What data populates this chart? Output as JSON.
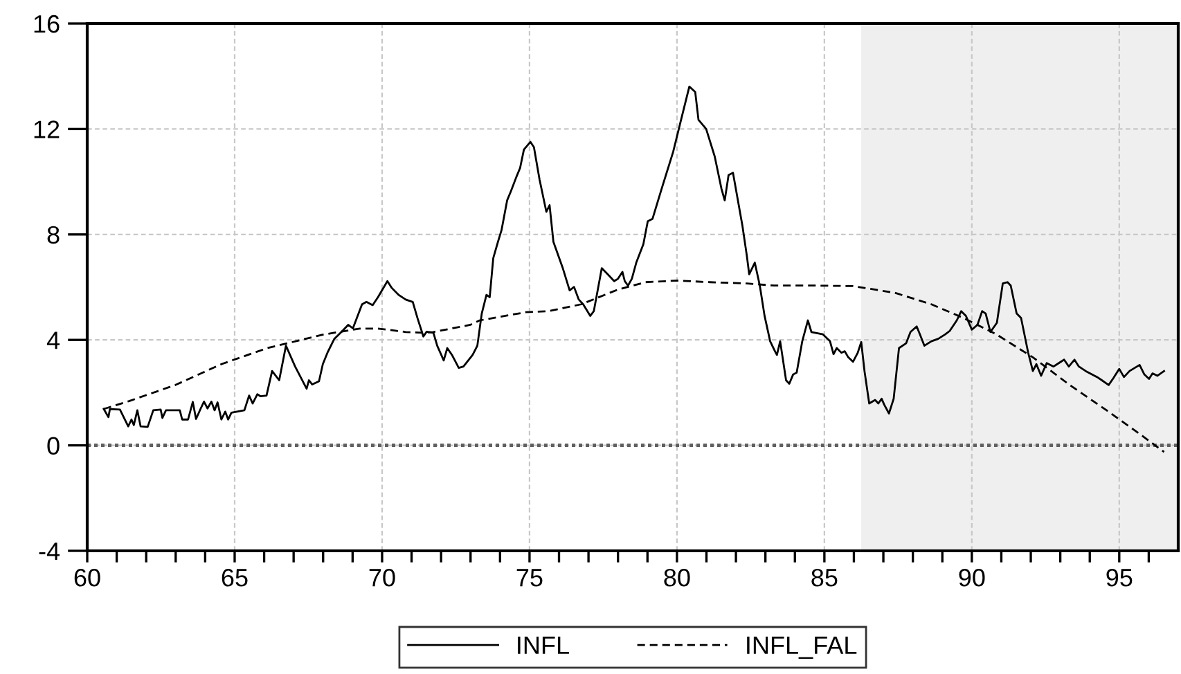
{
  "chart_data": {
    "type": "line",
    "xlim": [
      60,
      97
    ],
    "ylim": [
      -4,
      16
    ],
    "xticks": [
      60,
      {
        "value": 61,
        "label": null
      },
      {
        "value": 62,
        "label": null
      },
      {
        "value": 63,
        "label": null
      },
      {
        "value": 64,
        "label": null
      },
      65,
      {
        "value": 66,
        "label": null
      },
      {
        "value": 67,
        "label": null
      },
      {
        "value": 68,
        "label": null
      },
      {
        "value": 69,
        "label": null
      },
      70,
      {
        "value": 71,
        "label": null
      },
      {
        "value": 72,
        "label": null
      },
      {
        "value": 73,
        "label": null
      },
      {
        "value": 74,
        "label": null
      },
      75,
      {
        "value": 76,
        "label": null
      },
      {
        "value": 77,
        "label": null
      },
      {
        "value": 78,
        "label": null
      },
      {
        "value": 79,
        "label": null
      },
      80,
      {
        "value": 81,
        "label": null
      },
      {
        "value": 82,
        "label": null
      },
      {
        "value": 83,
        "label": null
      },
      {
        "value": 84,
        "label": null
      },
      85,
      {
        "value": 86,
        "label": null
      },
      {
        "value": 87,
        "label": null
      },
      {
        "value": 88,
        "label": null
      },
      {
        "value": 89,
        "label": null
      },
      90,
      {
        "value": 91,
        "label": null
      },
      {
        "value": 92,
        "label": null
      },
      {
        "value": 93,
        "label": null
      },
      {
        "value": 94,
        "label": null
      },
      95,
      {
        "value": 96,
        "label": null
      }
    ],
    "yticks": [
      -4,
      0,
      4,
      8,
      12,
      16
    ],
    "grid": true,
    "legend": "bottom",
    "ref_lines": [
      {
        "axis": "y",
        "value": 0,
        "color": "#606060",
        "line_style": "dotted"
      }
    ],
    "bands": [
      {
        "axis": "x",
        "from": 86.25,
        "to": 97,
        "color": "#efefef"
      }
    ],
    "series": [
      {
        "name": "INFL",
        "color": "#000000",
        "line_style": "solid",
        "x": [
          60.56,
          60.72,
          60.77,
          61.11,
          61.39,
          61.5,
          61.58,
          61.7,
          61.81,
          62.05,
          62.24,
          62.49,
          62.55,
          62.67,
          63.14,
          63.22,
          63.42,
          63.58,
          63.69,
          63.85,
          63.96,
          64.08,
          64.21,
          64.32,
          64.42,
          64.55,
          64.68,
          64.78,
          64.89,
          65.33,
          65.49,
          65.61,
          65.77,
          65.88,
          66.08,
          66.27,
          66.51,
          66.74,
          67.05,
          67.44,
          67.52,
          67.63,
          67.86,
          67.99,
          68.15,
          68.38,
          68.62,
          68.85,
          69.01,
          69.32,
          69.47,
          69.68,
          69.86,
          70.18,
          70.33,
          70.57,
          70.8,
          71.04,
          71.2,
          71.4,
          71.51,
          71.74,
          71.87,
          72.09,
          72.21,
          72.37,
          72.6,
          72.76,
          73.07,
          73.23,
          73.38,
          73.54,
          73.65,
          73.77,
          73.93,
          74.05,
          74.24,
          74.37,
          74.55,
          74.68,
          74.81,
          75.03,
          75.15,
          75.34,
          75.57,
          75.68,
          75.81,
          76.12,
          76.36,
          76.51,
          76.67,
          76.82,
          77.06,
          77.18,
          77.45,
          77.65,
          77.87,
          78.0,
          78.15,
          78.23,
          78.34,
          78.47,
          78.62,
          78.86,
          79.01,
          79.17,
          79.48,
          79.87,
          80.18,
          80.42,
          80.62,
          80.73,
          80.99,
          81.28,
          81.51,
          81.62,
          81.75,
          81.9,
          82.22,
          82.37,
          82.45,
          82.64,
          82.81,
          82.97,
          83.16,
          83.31,
          83.39,
          83.5,
          83.7,
          83.81,
          83.94,
          84.06,
          84.25,
          84.44,
          84.56,
          84.95,
          85.19,
          85.31,
          85.42,
          85.58,
          85.69,
          85.81,
          85.97,
          86.13,
          86.25,
          86.36,
          86.52,
          86.72,
          86.83,
          86.94,
          87.03,
          87.19,
          87.35,
          87.53,
          87.77,
          87.92,
          88.13,
          88.24,
          88.39,
          88.63,
          88.86,
          89.1,
          89.25,
          89.49,
          89.64,
          89.8,
          90.0,
          90.19,
          90.35,
          90.47,
          90.63,
          90.85,
          91.05,
          91.21,
          91.32,
          91.52,
          91.67,
          91.91,
          92.07,
          92.19,
          92.35,
          92.54,
          92.77,
          93.13,
          93.29,
          93.48,
          93.63,
          93.86,
          94.25,
          94.41,
          94.64,
          94.8,
          95.0,
          95.16,
          95.35,
          95.69,
          95.85,
          96.01,
          96.13,
          96.29,
          96.52
        ],
        "values": [
          1.38,
          1.07,
          1.38,
          1.36,
          0.72,
          0.98,
          0.77,
          1.33,
          0.72,
          0.7,
          1.33,
          1.36,
          1.04,
          1.33,
          1.33,
          0.98,
          0.98,
          1.65,
          1.0,
          1.4,
          1.66,
          1.4,
          1.66,
          1.33,
          1.63,
          0.98,
          1.28,
          0.98,
          1.24,
          1.33,
          1.89,
          1.59,
          1.94,
          1.86,
          1.89,
          2.82,
          2.47,
          3.78,
          2.99,
          2.15,
          2.47,
          2.31,
          2.43,
          3.08,
          3.52,
          4.04,
          4.3,
          4.57,
          4.44,
          5.35,
          5.44,
          5.32,
          5.62,
          6.23,
          5.97,
          5.7,
          5.53,
          5.44,
          4.83,
          4.13,
          4.31,
          4.27,
          3.78,
          3.22,
          3.69,
          3.43,
          2.94,
          2.99,
          3.43,
          3.78,
          5.0,
          5.71,
          5.62,
          7.1,
          7.72,
          8.16,
          9.29,
          9.64,
          10.17,
          10.52,
          11.22,
          11.51,
          11.31,
          10.08,
          8.86,
          9.11,
          7.72,
          6.75,
          5.88,
          6.01,
          5.53,
          5.35,
          4.91,
          5.09,
          6.72,
          6.49,
          6.23,
          6.32,
          6.58,
          6.23,
          6.06,
          6.32,
          6.93,
          7.63,
          8.5,
          8.59,
          9.73,
          11.13,
          12.53,
          13.61,
          13.4,
          12.35,
          12.0,
          10.96,
          9.73,
          9.29,
          10.25,
          10.34,
          8.33,
          7.19,
          6.49,
          6.93,
          6.06,
          4.92,
          3.95,
          3.6,
          3.43,
          3.95,
          2.47,
          2.34,
          2.69,
          2.76,
          3.95,
          4.74,
          4.3,
          4.21,
          3.95,
          3.46,
          3.69,
          3.51,
          3.57,
          3.34,
          3.17,
          3.51,
          3.92,
          2.82,
          1.59,
          1.72,
          1.59,
          1.77,
          1.54,
          1.21,
          1.77,
          3.69,
          3.87,
          4.3,
          4.51,
          4.21,
          3.78,
          3.95,
          4.04,
          4.21,
          4.34,
          4.74,
          5.09,
          4.91,
          4.39,
          4.57,
          5.09,
          5.0,
          4.3,
          4.65,
          6.14,
          6.19,
          6.06,
          5.0,
          4.83,
          3.52,
          2.82,
          3.08,
          2.64,
          3.12,
          2.99,
          3.25,
          2.99,
          3.25,
          2.99,
          2.82,
          2.59,
          2.47,
          2.29,
          2.55,
          2.9,
          2.59,
          2.82,
          3.05,
          2.69,
          2.52,
          2.73,
          2.64,
          2.82
        ]
      },
      {
        "name": "INFL_FAL",
        "color": "#000000",
        "line_style": "dashed",
        "x": [
          60.56,
          61.42,
          62.99,
          64.55,
          66.11,
          66.89,
          67.99,
          69.24,
          69.86,
          70.18,
          70.8,
          71.43,
          71.74,
          72.99,
          73.31,
          74.87,
          75.65,
          76.75,
          78.0,
          78.94,
          80.03,
          81.12,
          82.37,
          83.31,
          84.72,
          85.97,
          87.38,
          88.63,
          89.72,
          90.82,
          92.07,
          93.32,
          94.57,
          95.66,
          96.52
        ],
        "values": [
          1.38,
          1.68,
          2.29,
          3.08,
          3.69,
          3.9,
          4.2,
          4.43,
          4.43,
          4.39,
          4.3,
          4.27,
          4.3,
          4.57,
          4.74,
          5.05,
          5.09,
          5.35,
          5.91,
          6.19,
          6.25,
          6.19,
          6.14,
          6.06,
          6.06,
          6.04,
          5.79,
          5.35,
          4.83,
          4.22,
          3.34,
          2.29,
          1.33,
          0.46,
          -0.25
        ]
      }
    ]
  }
}
